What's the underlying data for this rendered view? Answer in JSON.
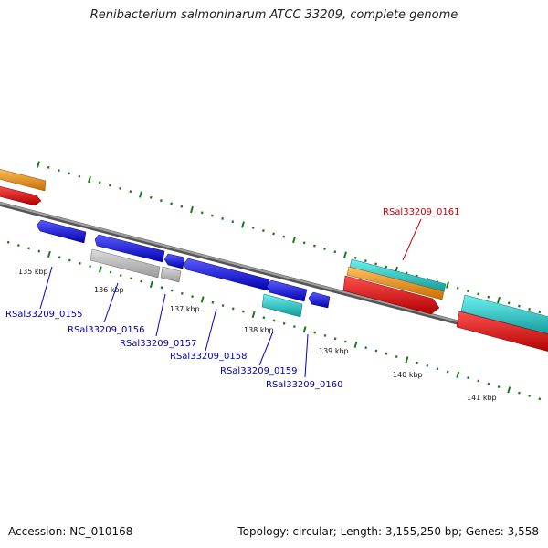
{
  "title": "Renibacterium salmoninarum ATCC 33209, complete genome",
  "footer": {
    "accession": "Accession: NC_010168",
    "summary": "Topology: circular; Length: 3,155,250 bp; Genes: 3,558"
  },
  "colors": {
    "forward_gene": "#1515e8",
    "pseudo_gene": "#b8b8b8",
    "cyan_feature": "#20c8c8",
    "orange_feature": "#f39a1a",
    "red_feature": "#ee1111",
    "backbone": "#888888",
    "tick": "#1a7a1a",
    "highlight_label": "#cc0000",
    "gene_label": "#0000aa"
  },
  "scale_labels": [
    "135 kbp",
    "136 kbp",
    "137 kbp",
    "138 kbp",
    "139 kbp",
    "140 kbp",
    "141 kbp"
  ],
  "gene_labels": [
    {
      "text": "RSal33209_0155",
      "color": "blue"
    },
    {
      "text": "RSal33209_0156",
      "color": "blue"
    },
    {
      "text": "RSal33209_0157",
      "color": "blue"
    },
    {
      "text": "RSal33209_0158",
      "color": "blue"
    },
    {
      "text": "RSal33209_0159",
      "color": "blue"
    },
    {
      "text": "RSal33209_0160",
      "color": "blue"
    },
    {
      "text": "RSal33209_0161",
      "color": "red"
    }
  ]
}
